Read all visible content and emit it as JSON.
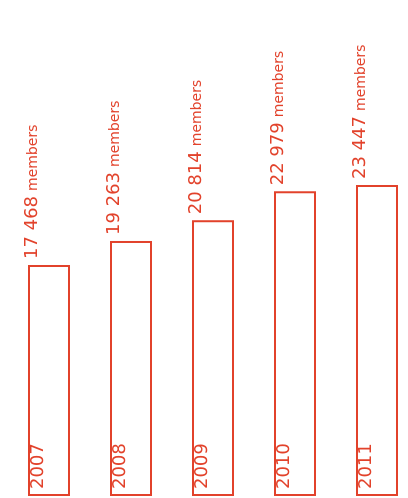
{
  "chart_data": {
    "type": "bar",
    "orientation": "vertical",
    "title": "",
    "xlabel": "",
    "ylabel": "",
    "categories": [
      "2007",
      "2008",
      "2009",
      "2010",
      "2011"
    ],
    "values": [
      17468,
      19263,
      20814,
      22979,
      23447
    ],
    "value_labels": [
      "17 468",
      "19 263",
      "20 814",
      "22 979",
      "23 447"
    ],
    "unit_label": "members",
    "grid": false,
    "legend": "none",
    "colors": {
      "bar_stroke": "#e2422b",
      "text": "#e2422b",
      "background": "#ffffff"
    }
  }
}
